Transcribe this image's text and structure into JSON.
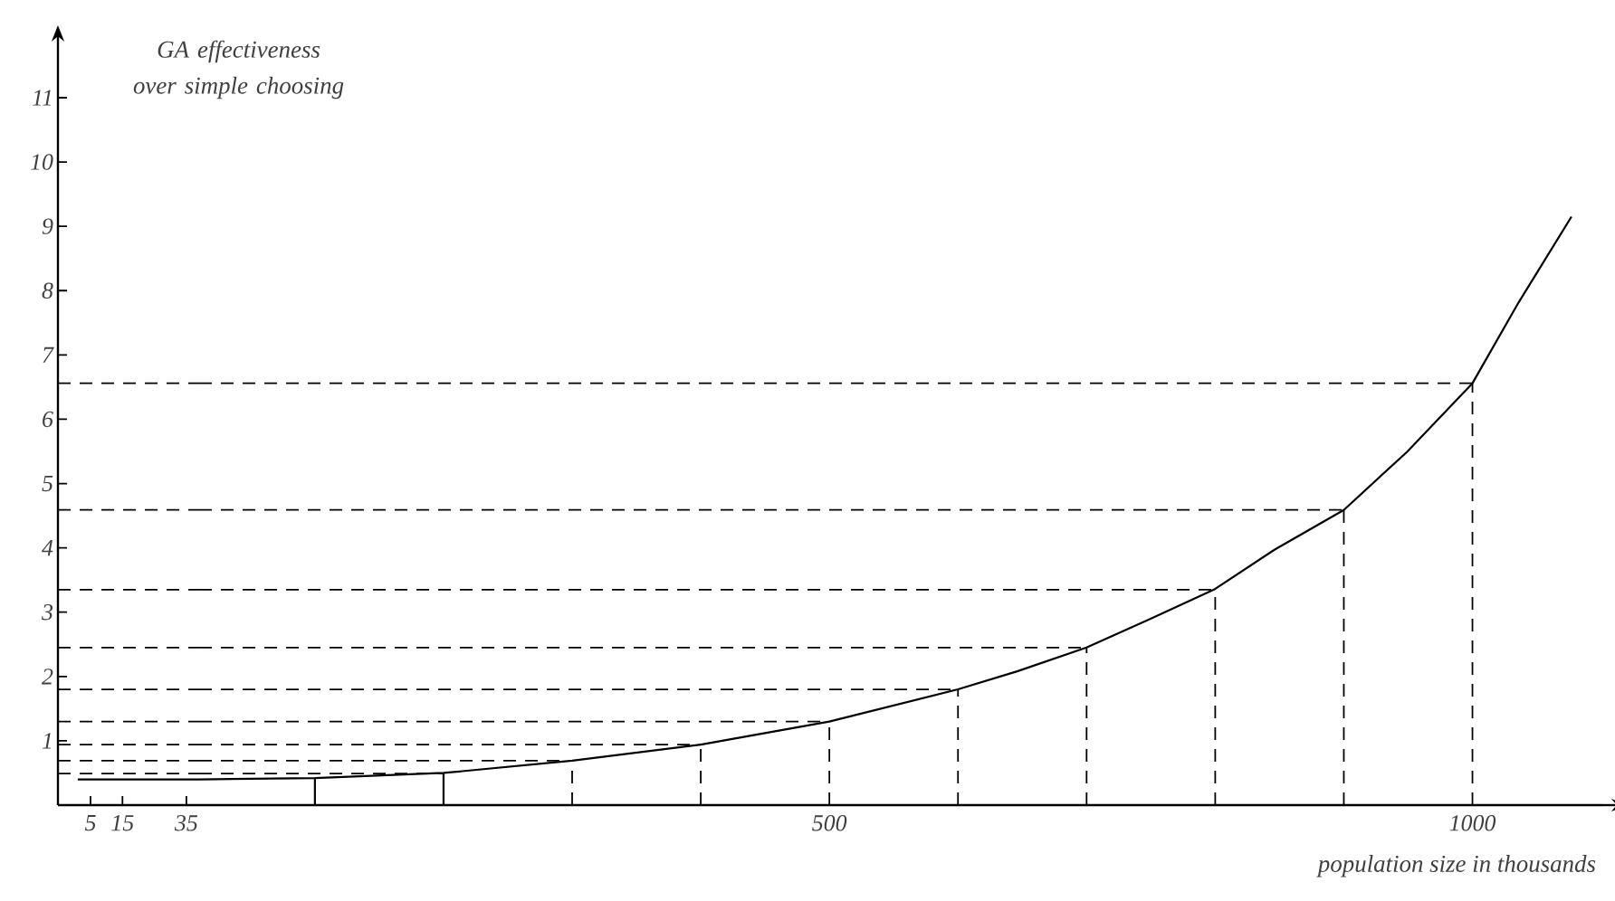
{
  "chart_data": [
    {
      "type": "line",
      "ylabel": "GA effectiveness over simple choosing",
      "xlim": [
        -5.2,
        39
      ],
      "ylim": [
        0,
        11
      ],
      "xticks": [
        5,
        15,
        35
      ],
      "yticks": [
        1,
        2,
        3,
        4,
        5,
        6,
        7,
        8,
        9,
        10,
        11
      ],
      "marker": "none",
      "line_style": "solid",
      "series": [
        {
          "color": "#000000",
          "x": [
            1,
            39
          ],
          "values": [
            0.4,
            0.4
          ]
        },
        {
          "color": "#000000",
          "line_style": "dashed",
          "x": [
            -5.2,
            39
          ],
          "values": [
            0.49,
            0.49
          ]
        },
        {
          "color": "#000000",
          "line_style": "dashed",
          "x": [
            -5.2,
            39
          ],
          "values": [
            0.69,
            0.69
          ]
        },
        {
          "color": "#000000",
          "line_style": "dashed",
          "x": [
            -5.2,
            39
          ],
          "values": [
            0.94,
            0.94
          ]
        },
        {
          "color": "#000000",
          "line_style": "dashed",
          "x": [
            -5.2,
            39
          ],
          "values": [
            1.3,
            1.3
          ]
        },
        {
          "color": "#000000",
          "line_style": "dashed",
          "x": [
            -5.2,
            39
          ],
          "values": [
            1.8,
            1.8
          ]
        },
        {
          "color": "#000000",
          "line_style": "dashed",
          "x": [
            -5.2,
            39
          ],
          "values": [
            2.45,
            2.45
          ]
        },
        {
          "color": "#000000",
          "line_style": "dashed",
          "x": [
            -5.2,
            39
          ],
          "values": [
            3.35,
            3.35
          ]
        },
        {
          "color": "#000000",
          "line_style": "dashed",
          "x": [
            -5.2,
            39
          ],
          "values": [
            4.59,
            4.59
          ]
        },
        {
          "color": "#000000",
          "line_style": "dashed",
          "x": [
            -5.2,
            39
          ],
          "values": [
            6.56,
            6.56
          ]
        }
      ]
    },
    {
      "type": "line",
      "xlabel": "population size in thousands",
      "xlim": [
        10,
        1101
      ],
      "ylim": [
        0,
        11
      ],
      "xticks": [
        500,
        1000
      ],
      "tick_labels": "x",
      "marker": "none",
      "line_style": "solid",
      "series": [
        {
          "color": "#000000",
          "x": [
            10,
            100,
            200,
            300,
            400,
            500,
            600,
            646,
            700,
            749,
            799,
            846,
            900,
            949,
            1000,
            1036,
            1077
          ],
          "values": [
            0.4,
            0.42,
            0.5,
            0.69,
            0.94,
            1.3,
            1.8,
            2.08,
            2.45,
            2.89,
            3.35,
            3.97,
            4.59,
            5.49,
            6.56,
            7.82,
            9.15
          ]
        },
        {
          "color": "#000000",
          "x": [
            100,
            100
          ],
          "values": [
            0,
            0.42
          ]
        },
        {
          "color": "#000000",
          "x": [
            200,
            200
          ],
          "values": [
            0,
            0.5
          ]
        },
        {
          "color": "#000000",
          "line_style": "dashed",
          "x": [
            300,
            300
          ],
          "values": [
            0,
            0.69
          ]
        },
        {
          "color": "#000000",
          "line_style": "dashed",
          "x": [
            400,
            400
          ],
          "values": [
            0,
            0.94
          ]
        },
        {
          "color": "#000000",
          "line_style": "dashed",
          "x": [
            500,
            500
          ],
          "values": [
            0,
            1.3
          ]
        },
        {
          "color": "#000000",
          "line_style": "dashed",
          "x": [
            600,
            600
          ],
          "values": [
            0,
            1.8
          ]
        },
        {
          "color": "#000000",
          "line_style": "dashed",
          "x": [
            700,
            700
          ],
          "values": [
            0,
            2.45
          ]
        },
        {
          "color": "#000000",
          "line_style": "dashed",
          "x": [
            800,
            800
          ],
          "values": [
            0,
            3.35
          ]
        },
        {
          "color": "#000000",
          "line_style": "dashed",
          "x": [
            900,
            900
          ],
          "values": [
            0,
            4.59
          ]
        },
        {
          "color": "#000000",
          "line_style": "dashed",
          "x": [
            1000,
            1000
          ],
          "values": [
            0,
            6.56
          ]
        },
        {
          "color": "#000000",
          "line_style": "dashed",
          "x": [
            10,
            200
          ],
          "values": [
            0.49,
            0.49
          ]
        },
        {
          "color": "#000000",
          "line_style": "dashed",
          "x": [
            10,
            300
          ],
          "values": [
            0.69,
            0.69
          ]
        },
        {
          "color": "#000000",
          "line_style": "dashed",
          "x": [
            10,
            400
          ],
          "values": [
            0.94,
            0.94
          ]
        },
        {
          "color": "#000000",
          "line_style": "dashed",
          "x": [
            10,
            500
          ],
          "values": [
            1.3,
            1.3
          ]
        },
        {
          "color": "#000000",
          "line_style": "dashed",
          "x": [
            10,
            600
          ],
          "values": [
            1.8,
            1.8
          ]
        },
        {
          "color": "#000000",
          "line_style": "dashed",
          "x": [
            10,
            700
          ],
          "values": [
            2.45,
            2.45
          ]
        },
        {
          "color": "#000000",
          "line_style": "dashed",
          "x": [
            10,
            800
          ],
          "values": [
            3.35,
            3.35
          ]
        },
        {
          "color": "#000000",
          "line_style": "dashed",
          "x": [
            10,
            900
          ],
          "values": [
            4.59,
            4.59
          ]
        },
        {
          "color": "#000000",
          "line_style": "dashed",
          "x": [
            10,
            1000
          ],
          "values": [
            6.56,
            6.56
          ]
        }
      ]
    }
  ]
}
